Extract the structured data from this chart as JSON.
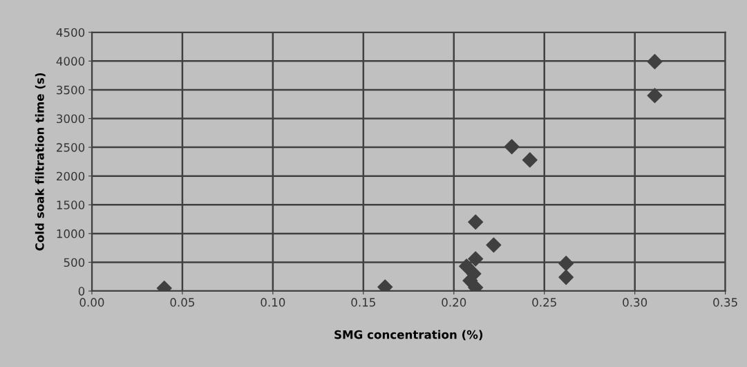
{
  "chart_data": {
    "type": "scatter",
    "xlabel": "SMG concentration (%)",
    "ylabel": "Cold soak filtration time (s)",
    "x": [
      0.04,
      0.162,
      0.207,
      0.211,
      0.209,
      0.212,
      0.212,
      0.212,
      0.222,
      0.232,
      0.242,
      0.262,
      0.262,
      0.311,
      0.311
    ],
    "series": [
      {
        "color": "#404040",
        "values": [
          50,
          70,
          430,
          300,
          180,
          560,
          60,
          1200,
          800,
          2510,
          2280,
          480,
          240,
          3990,
          3400
        ]
      }
    ],
    "xlim": [
      0,
      0.35
    ],
    "xticks": [
      {
        "value": 0,
        "label": "0.00"
      },
      {
        "value": 0.05,
        "label": "0.05"
      },
      {
        "value": 0.1,
        "label": "0.10"
      },
      {
        "value": 0.15,
        "label": "0.15"
      },
      {
        "value": 0.2,
        "label": "0.20"
      },
      {
        "value": 0.25,
        "label": "0.25"
      },
      {
        "value": 0.3,
        "label": "0.30"
      },
      {
        "value": 0.35,
        "label": "0.35"
      }
    ],
    "ylim": [
      0,
      4500
    ],
    "yticks": [
      0,
      500,
      1000,
      1500,
      2000,
      2500,
      3000,
      3500,
      4000,
      4500
    ],
    "grid": true,
    "marker": "diamond",
    "legend": false
  }
}
